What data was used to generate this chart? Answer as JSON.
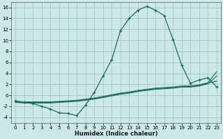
{
  "xlabel": "Humidex (Indice chaleur)",
  "ylabel": "",
  "background_color": "#cce8e8",
  "grid_color": "#aacccc",
  "line_color": "#1a6b5a",
  "xlim": [
    -0.5,
    23.5
  ],
  "ylim": [
    -5,
    17
  ],
  "xticks": [
    0,
    1,
    2,
    3,
    4,
    5,
    6,
    7,
    8,
    9,
    10,
    11,
    12,
    13,
    14,
    15,
    16,
    17,
    18,
    19,
    20,
    21,
    22,
    23
  ],
  "yticks": [
    -4,
    -2,
    0,
    2,
    4,
    6,
    8,
    10,
    12,
    14,
    16
  ],
  "main_y": [
    -1.0,
    -1.3,
    -1.5,
    -2.0,
    -2.5,
    -3.2,
    -3.3,
    -3.7,
    -1.8,
    0.5,
    3.5,
    6.5,
    11.8,
    14.0,
    15.5,
    16.2,
    15.5,
    14.5,
    10.2,
    5.5,
    2.2,
    2.8,
    3.2,
    1.5
  ],
  "line1_y": [
    -1.2,
    -1.3,
    -1.3,
    -1.3,
    -1.3,
    -1.2,
    -1.1,
    -1.0,
    -0.8,
    -0.6,
    -0.3,
    0.0,
    0.3,
    0.5,
    0.8,
    1.0,
    1.2,
    1.3,
    1.4,
    1.6,
    1.6,
    1.8,
    2.2,
    2.6
  ],
  "line2_y": [
    -1.3,
    -1.4,
    -1.4,
    -1.4,
    -1.4,
    -1.3,
    -1.2,
    -1.1,
    -0.9,
    -0.7,
    -0.4,
    -0.1,
    0.2,
    0.4,
    0.7,
    0.9,
    1.1,
    1.2,
    1.3,
    1.5,
    1.5,
    1.7,
    2.1,
    3.5
  ],
  "line3_y": [
    -1.1,
    -1.2,
    -1.2,
    -1.2,
    -1.2,
    -1.1,
    -1.0,
    -0.9,
    -0.7,
    -0.5,
    -0.2,
    0.1,
    0.4,
    0.6,
    0.9,
    1.1,
    1.3,
    1.4,
    1.5,
    1.7,
    1.7,
    1.9,
    2.3,
    4.3
  ],
  "x_vals": [
    0,
    1,
    2,
    3,
    4,
    5,
    6,
    7,
    8,
    9,
    10,
    11,
    12,
    13,
    14,
    15,
    16,
    17,
    18,
    19,
    20,
    21,
    22,
    23
  ]
}
